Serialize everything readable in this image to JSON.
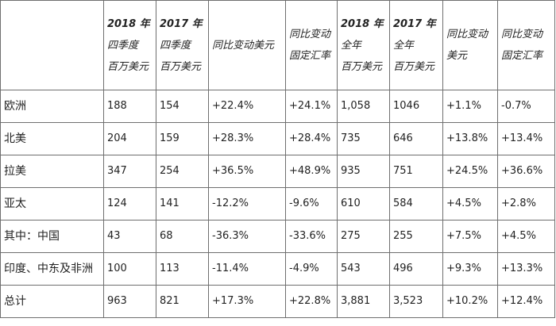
{
  "header": {
    "empty": "",
    "q4_2018": {
      "l1": "2018 年",
      "l2": "四季度",
      "l3": "百万美元"
    },
    "q4_2017": {
      "l1": "2017 年",
      "l2": "四季度",
      "l3": "百万美元"
    },
    "q4_yoy_usd": "同比变动美元",
    "q4_yoy_fx": {
      "l1": "同比变动",
      "l2": "固定汇率"
    },
    "fy_2018": {
      "l1": "2018 年",
      "l2": "全年",
      "l3": "百万美元"
    },
    "fy_2017": {
      "l1": "2017 年",
      "l2": "全年",
      "l3": "百万美元"
    },
    "fy_yoy_usd": {
      "l1": "同比变动",
      "l2": "美元"
    },
    "fy_yoy_fx": {
      "l1": "同比变动",
      "l2": "固定汇率"
    }
  },
  "rows": [
    {
      "region": "欧洲",
      "c1": "188",
      "c2": "154",
      "c3": "+22.4%",
      "c4": "+24.1%",
      "c5": "1,058",
      "c6": "1046",
      "c7": "+1.1%",
      "c8": "-0.7%"
    },
    {
      "region": "北美",
      "c1": "204",
      "c2": "159",
      "c3": "+28.3%",
      "c4": "+28.4%",
      "c5": "735",
      "c6": "646",
      "c7": "+13.8%",
      "c8": "+13.4%"
    },
    {
      "region": "拉美",
      "c1": "347",
      "c2": "254",
      "c3": "+36.5%",
      "c4": "+48.9%",
      "c5": "935",
      "c6": "751",
      "c7": "+24.5%",
      "c8": "+36.6%"
    },
    {
      "region": "亚太",
      "c1": "124",
      "c2": "141",
      "c3": "-12.2%",
      "c4": "-9.6%",
      "c5": "610",
      "c6": "584",
      "c7": "+4.5%",
      "c8": "+2.8%"
    },
    {
      "region": "其中：中国",
      "c1": "43",
      "c2": "68",
      "c3": "-36.3%",
      "c4": "-33.6%",
      "c5": "275",
      "c6": "255",
      "c7": "+7.5%",
      "c8": "+4.5%"
    },
    {
      "region": "印度、中东及非洲",
      "c1": "100",
      "c2": "113",
      "c3": "-11.4%",
      "c4": "-4.9%",
      "c5": "543",
      "c6": "496",
      "c7": "+9.3%",
      "c8": "+13.3%"
    },
    {
      "region": "总计",
      "c1": "963",
      "c2": "821",
      "c3": "+17.3%",
      "c4": "+22.8%",
      "c5": "3,881",
      "c6": "3,523",
      "c7": "+10.2%",
      "c8": "+12.4%"
    }
  ]
}
